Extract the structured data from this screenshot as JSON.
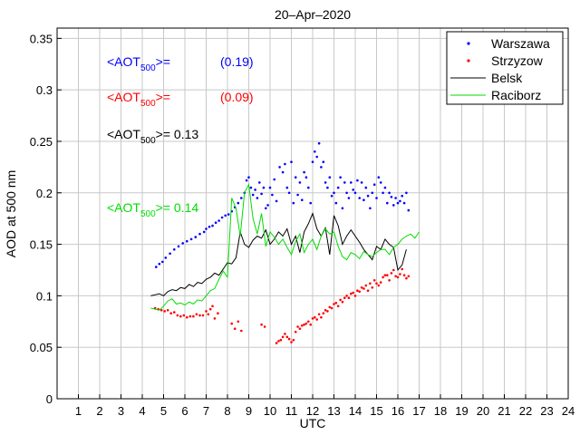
{
  "chart_data": {
    "type": "scatter",
    "title": "20–Apr–2020",
    "xlabel": "UTC",
    "ylabel": "AOD at 500 nm",
    "xlim": [
      0,
      24
    ],
    "ylim": [
      0,
      0.36
    ],
    "grid": true,
    "legend_position": "top-right",
    "x_ticks": [
      1,
      2,
      3,
      4,
      5,
      6,
      7,
      8,
      9,
      10,
      11,
      12,
      13,
      14,
      15,
      16,
      17,
      18,
      19,
      20,
      21,
      22,
      23,
      24
    ],
    "x_tick_labels": [
      "1",
      "2",
      "3",
      "4",
      "5",
      "6",
      "7",
      "8",
      "9",
      "10",
      "11",
      "12",
      "13",
      "14",
      "15",
      "16",
      "17",
      "18",
      "19",
      "20",
      "21",
      "22",
      "23",
      "24"
    ],
    "y_ticks": [
      0,
      0.05,
      0.1,
      0.15,
      0.2,
      0.25,
      0.3,
      0.35
    ],
    "y_tick_labels": [
      "0",
      "0.05",
      "0.1",
      "0.15",
      "0.2",
      "0.25",
      "0.3",
      "0.35"
    ],
    "series": [
      {
        "name": "Warszawa",
        "style": "dots",
        "color": "#0000ff",
        "x": [
          4.65,
          4.8,
          4.95,
          5.1,
          5.3,
          5.5,
          5.7,
          5.9,
          6.1,
          6.3,
          6.5,
          6.7,
          6.9,
          7.0,
          7.15,
          7.3,
          7.45,
          7.6,
          7.75,
          7.9,
          8.05,
          8.2,
          8.35,
          8.5,
          8.65,
          8.8,
          8.9,
          9.0,
          9.1,
          9.2,
          9.3,
          9.4,
          9.5,
          9.6,
          9.7,
          9.8,
          9.9,
          10.0,
          10.1,
          10.2,
          10.3,
          10.45,
          10.6,
          10.7,
          10.8,
          10.9,
          11.0,
          11.1,
          11.2,
          11.3,
          11.4,
          11.5,
          11.6,
          11.7,
          11.8,
          11.9,
          12.0,
          12.1,
          12.2,
          12.3,
          12.4,
          12.5,
          12.6,
          12.7,
          12.8,
          12.9,
          13.0,
          13.1,
          13.2,
          13.3,
          13.4,
          13.5,
          13.6,
          13.7,
          13.8,
          13.9,
          14.0,
          14.1,
          14.2,
          14.3,
          14.4,
          14.5,
          14.6,
          14.7,
          14.8,
          14.9,
          15.0,
          15.1,
          15.2,
          15.3,
          15.4,
          15.5,
          15.6,
          15.7,
          15.8,
          15.9,
          16.0,
          16.1,
          16.2,
          16.3,
          16.4,
          16.5
        ],
        "y": [
          0.128,
          0.131,
          0.133,
          0.137,
          0.141,
          0.145,
          0.148,
          0.151,
          0.153,
          0.155,
          0.157,
          0.16,
          0.162,
          0.165,
          0.167,
          0.168,
          0.171,
          0.173,
          0.176,
          0.178,
          0.179,
          0.182,
          0.186,
          0.19,
          0.195,
          0.2,
          0.212,
          0.215,
          0.205,
          0.198,
          0.203,
          0.195,
          0.21,
          0.199,
          0.205,
          0.185,
          0.188,
          0.205,
          0.198,
          0.213,
          0.192,
          0.225,
          0.22,
          0.228,
          0.205,
          0.2,
          0.23,
          0.19,
          0.215,
          0.198,
          0.21,
          0.193,
          0.22,
          0.215,
          0.205,
          0.19,
          0.23,
          0.24,
          0.235,
          0.248,
          0.225,
          0.23,
          0.21,
          0.205,
          0.215,
          0.197,
          0.2,
          0.19,
          0.205,
          0.215,
          0.185,
          0.21,
          0.2,
          0.195,
          0.21,
          0.203,
          0.2,
          0.212,
          0.195,
          0.21,
          0.193,
          0.205,
          0.197,
          0.185,
          0.2,
          0.208,
          0.195,
          0.215,
          0.21,
          0.2,
          0.205,
          0.19,
          0.2,
          0.196,
          0.188,
          0.195,
          0.19,
          0.192,
          0.197,
          0.19,
          0.2,
          0.183
        ]
      },
      {
        "name": "Strzyzow",
        "style": "dots",
        "color": "#ff0000",
        "x": [
          4.6,
          4.75,
          4.9,
          5.05,
          5.2,
          5.35,
          5.5,
          5.65,
          5.8,
          5.95,
          6.1,
          6.25,
          6.4,
          6.55,
          6.7,
          6.85,
          7.0,
          7.1,
          7.2,
          7.3,
          7.4,
          7.55,
          8.2,
          8.35,
          8.5,
          8.65,
          9.6,
          9.75,
          10.3,
          10.4,
          10.5,
          10.6,
          10.7,
          10.8,
          10.9,
          11.0,
          11.1,
          11.2,
          11.3,
          11.4,
          11.5,
          11.6,
          11.7,
          11.8,
          11.9,
          12.0,
          12.1,
          12.2,
          12.3,
          12.4,
          12.5,
          12.6,
          12.7,
          12.8,
          12.9,
          13.0,
          13.1,
          13.2,
          13.3,
          13.4,
          13.5,
          13.6,
          13.7,
          13.8,
          13.9,
          14.0,
          14.1,
          14.2,
          14.3,
          14.4,
          14.5,
          14.6,
          14.7,
          14.8,
          14.9,
          15.0,
          15.1,
          15.2,
          15.3,
          15.4,
          15.5,
          15.6,
          15.7,
          15.8,
          15.9,
          16.0,
          16.1,
          16.2,
          16.3,
          16.4,
          16.5
        ],
        "y": [
          0.088,
          0.087,
          0.086,
          0.085,
          0.086,
          0.083,
          0.084,
          0.081,
          0.08,
          0.081,
          0.079,
          0.08,
          0.08,
          0.082,
          0.081,
          0.081,
          0.085,
          0.082,
          0.087,
          0.09,
          0.078,
          0.083,
          0.073,
          0.068,
          0.075,
          0.066,
          0.072,
          0.07,
          0.054,
          0.056,
          0.057,
          0.06,
          0.063,
          0.06,
          0.058,
          0.055,
          0.057,
          0.065,
          0.07,
          0.068,
          0.071,
          0.072,
          0.073,
          0.075,
          0.072,
          0.078,
          0.079,
          0.077,
          0.082,
          0.079,
          0.083,
          0.086,
          0.085,
          0.089,
          0.088,
          0.092,
          0.093,
          0.09,
          0.096,
          0.094,
          0.098,
          0.1,
          0.098,
          0.102,
          0.103,
          0.1,
          0.105,
          0.104,
          0.108,
          0.107,
          0.11,
          0.105,
          0.112,
          0.108,
          0.115,
          0.112,
          0.11,
          0.113,
          0.118,
          0.12,
          0.12,
          0.115,
          0.122,
          0.125,
          0.119,
          0.118,
          0.121,
          0.126,
          0.12,
          0.117,
          0.119
        ]
      },
      {
        "name": "Belsk",
        "style": "line",
        "color": "#000000",
        "x": [
          4.4,
          4.6,
          4.8,
          5.0,
          5.2,
          5.4,
          5.6,
          5.8,
          6.0,
          6.2,
          6.4,
          6.6,
          6.8,
          7.0,
          7.2,
          7.4,
          7.6,
          7.8,
          8.0,
          8.2,
          8.4,
          8.6,
          8.8,
          9.0,
          9.2,
          9.4,
          9.6,
          9.8,
          10.0,
          10.2,
          10.4,
          10.6,
          10.8,
          11.0,
          11.2,
          11.4,
          11.6,
          11.8,
          12.0,
          12.2,
          12.4,
          12.6,
          12.8,
          13.0,
          13.2,
          13.4,
          13.6,
          13.8,
          14.0,
          14.2,
          14.4,
          14.6,
          14.8,
          15.0,
          15.2,
          15.4,
          15.6,
          15.8,
          16.0,
          16.2,
          16.4
        ],
        "y": [
          0.1,
          0.101,
          0.102,
          0.1,
          0.104,
          0.106,
          0.105,
          0.108,
          0.107,
          0.111,
          0.109,
          0.113,
          0.112,
          0.116,
          0.118,
          0.122,
          0.12,
          0.126,
          0.132,
          0.131,
          0.137,
          0.162,
          0.15,
          0.147,
          0.154,
          0.158,
          0.156,
          0.164,
          0.15,
          0.155,
          0.162,
          0.158,
          0.165,
          0.15,
          0.158,
          0.142,
          0.162,
          0.17,
          0.18,
          0.165,
          0.158,
          0.166,
          0.14,
          0.178,
          0.168,
          0.15,
          0.158,
          0.164,
          0.158,
          0.152,
          0.145,
          0.14,
          0.135,
          0.148,
          0.145,
          0.155,
          0.15,
          0.147,
          0.125,
          0.13,
          0.145
        ]
      },
      {
        "name": "Raciborz",
        "style": "line",
        "color": "#00dd00",
        "x": [
          4.4,
          4.6,
          4.8,
          5.0,
          5.2,
          5.4,
          5.6,
          5.8,
          6.0,
          6.2,
          6.4,
          6.6,
          6.8,
          7.0,
          7.2,
          7.4,
          7.6,
          7.8,
          8.0,
          8.2,
          8.4,
          8.6,
          8.8,
          9.0,
          9.2,
          9.4,
          9.6,
          9.8,
          10.0,
          10.2,
          10.4,
          10.6,
          10.8,
          11.0,
          11.2,
          11.4,
          11.6,
          11.8,
          12.0,
          12.2,
          12.4,
          12.6,
          12.8,
          13.0,
          13.2,
          13.4,
          13.6,
          13.8,
          14.0,
          14.2,
          14.4,
          14.6,
          14.8,
          15.0,
          15.2,
          15.4,
          15.6,
          15.8,
          16.0,
          16.2,
          16.4,
          16.6,
          16.8,
          17.0
        ],
        "y": [
          0.088,
          0.087,
          0.086,
          0.09,
          0.095,
          0.097,
          0.092,
          0.093,
          0.091,
          0.094,
          0.092,
          0.096,
          0.095,
          0.1,
          0.105,
          0.107,
          0.116,
          0.124,
          0.118,
          0.195,
          0.185,
          0.158,
          0.2,
          0.208,
          0.175,
          0.16,
          0.18,
          0.148,
          0.162,
          0.157,
          0.15,
          0.155,
          0.147,
          0.14,
          0.153,
          0.16,
          0.142,
          0.15,
          0.155,
          0.145,
          0.158,
          0.165,
          0.16,
          0.162,
          0.148,
          0.138,
          0.135,
          0.142,
          0.14,
          0.136,
          0.143,
          0.14,
          0.138,
          0.142,
          0.145,
          0.145,
          0.14,
          0.147,
          0.15,
          0.155,
          0.158,
          0.16,
          0.156,
          0.162
        ]
      }
    ],
    "annotations": [
      {
        "id": "ann-warszawa",
        "prefix": "<AOT",
        "sub": "500",
        "suffix": ">=",
        "value": "(0.19)",
        "color": "#0000ff"
      },
      {
        "id": "ann-strzyzow",
        "prefix": "<AOT",
        "sub": "500",
        "suffix": ">=",
        "value": "(0.09)",
        "color": "#ff0000"
      },
      {
        "id": "ann-belsk",
        "prefix": "<AOT",
        "sub": "500",
        "suffix": ">=",
        "value": " 0.13",
        "color": "#000000"
      },
      {
        "id": "ann-raciborz",
        "prefix": "<AOT",
        "sub": "500",
        "suffix": ">=",
        "value": " 0.14",
        "color": "#00dd00"
      }
    ]
  }
}
